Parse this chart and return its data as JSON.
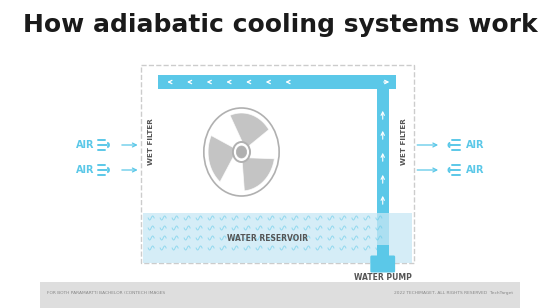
{
  "title": "How adiabatic cooling systems work",
  "title_fontsize": 18,
  "bg_color": "#ffffff",
  "blue": "#5bc8e8",
  "light_blue_fill": "#c8e8f5",
  "gray_fan": "#b0b0b0",
  "dash_color": "#cccccc",
  "footer_left": "FOR BOTH PARAMARTTI BACHELOR (CONTECH IMAGES",
  "footer_right": "2022 TECHIMAGET, ALL RIGHTS RESERVED  TechTarget"
}
